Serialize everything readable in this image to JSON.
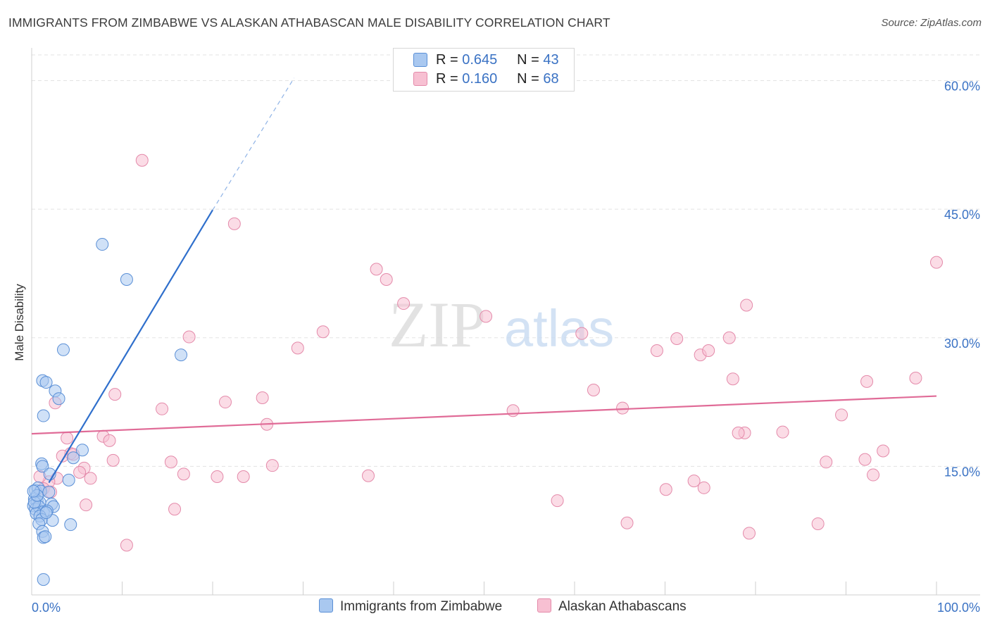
{
  "title": "IMMIGRANTS FROM ZIMBABWE VS ALASKAN ATHABASCAN MALE DISABILITY CORRELATION CHART",
  "source": "Source: ZipAtlas.com",
  "watermark": {
    "zip": "ZIP",
    "atlas": "atlas"
  },
  "legend": {
    "blue": {
      "r_label": "R =",
      "r_value": "0.645",
      "n_label": "N =",
      "n_value": "43"
    },
    "pink": {
      "r_label": "R =",
      "r_value": "0.160",
      "n_label": "N =",
      "n_value": "68"
    }
  },
  "colors": {
    "blue_fill": "#a9c8f0",
    "blue_stroke": "#5a8fd6",
    "blue_line": "#2f6fcc",
    "pink_fill": "#f7c0d2",
    "pink_stroke": "#e48aaa",
    "pink_line": "#e06b97",
    "grid": "#e3e3e3",
    "tick_label": "#3a72c4"
  },
  "chart_data": {
    "type": "scatter",
    "title": "IMMIGRANTS FROM ZIMBABWE VS ALASKAN ATHABASCAN MALE DISABILITY CORRELATION CHART",
    "xlabel": "",
    "ylabel": "Male Disability",
    "xlim": [
      0,
      100
    ],
    "ylim": [
      0,
      63
    ],
    "x_tick_labels": [
      "0.0%",
      "100.0%"
    ],
    "y_ticks": [
      15,
      30,
      45,
      60
    ],
    "y_tick_labels": [
      "15.0%",
      "30.0%",
      "45.0%",
      "60.0%"
    ],
    "series": [
      {
        "name": "Immigrants from Zimbabwe",
        "color": "#a9c8f0",
        "points": [
          [
            1.2,
            25.0
          ],
          [
            1.6,
            24.8
          ],
          [
            2.6,
            23.8
          ],
          [
            3.0,
            22.9
          ],
          [
            1.3,
            20.9
          ],
          [
            3.5,
            28.6
          ],
          [
            7.8,
            40.9
          ],
          [
            10.5,
            36.8
          ],
          [
            16.5,
            28.0
          ],
          [
            5.6,
            16.9
          ],
          [
            4.6,
            16.0
          ],
          [
            1.1,
            15.3
          ],
          [
            1.2,
            15.0
          ],
          [
            2.0,
            14.1
          ],
          [
            4.1,
            13.4
          ],
          [
            0.4,
            12.2
          ],
          [
            0.7,
            12.5
          ],
          [
            1.0,
            12.1
          ],
          [
            1.9,
            12.0
          ],
          [
            0.3,
            11.2
          ],
          [
            0.6,
            11.0
          ],
          [
            0.9,
            10.8
          ],
          [
            0.2,
            10.4
          ],
          [
            0.4,
            10.0
          ],
          [
            0.8,
            10.3
          ],
          [
            1.3,
            9.7
          ],
          [
            2.2,
            10.6
          ],
          [
            2.4,
            10.3
          ],
          [
            1.7,
            9.8
          ],
          [
            0.5,
            9.5
          ],
          [
            0.9,
            9.2
          ],
          [
            1.1,
            8.8
          ],
          [
            2.3,
            8.7
          ],
          [
            0.8,
            8.3
          ],
          [
            4.3,
            8.2
          ],
          [
            1.2,
            7.4
          ],
          [
            1.3,
            6.7
          ],
          [
            1.5,
            6.8
          ],
          [
            1.3,
            1.8
          ],
          [
            0.3,
            10.8
          ],
          [
            0.6,
            11.6
          ],
          [
            1.6,
            9.6
          ],
          [
            0.2,
            12.1
          ]
        ],
        "trend": {
          "x": [
            1.9,
            20.0
          ],
          "y": [
            13.1,
            44.9
          ]
        },
        "trend_dashed": {
          "x": [
            20.0,
            29.0
          ],
          "y": [
            44.9,
            60.3
          ]
        }
      },
      {
        "name": "Alaskan Athabascans",
        "color": "#f7c0d2",
        "points": [
          [
            12.2,
            50.7
          ],
          [
            22.4,
            43.3
          ],
          [
            38.1,
            38.0
          ],
          [
            39.2,
            36.8
          ],
          [
            41.1,
            34.0
          ],
          [
            50.2,
            32.5
          ],
          [
            32.2,
            30.7
          ],
          [
            17.4,
            30.1
          ],
          [
            29.4,
            28.8
          ],
          [
            60.8,
            30.5
          ],
          [
            71.3,
            29.9
          ],
          [
            73.9,
            28.0
          ],
          [
            74.8,
            28.5
          ],
          [
            77.1,
            30.0
          ],
          [
            69.1,
            28.5
          ],
          [
            79.0,
            33.8
          ],
          [
            100.0,
            38.8
          ],
          [
            97.7,
            25.3
          ],
          [
            92.3,
            24.9
          ],
          [
            77.5,
            25.2
          ],
          [
            62.1,
            23.9
          ],
          [
            9.2,
            23.4
          ],
          [
            2.6,
            22.4
          ],
          [
            21.4,
            22.5
          ],
          [
            25.5,
            23.0
          ],
          [
            14.4,
            21.7
          ],
          [
            65.3,
            21.8
          ],
          [
            53.2,
            21.5
          ],
          [
            26.0,
            19.9
          ],
          [
            89.5,
            21.0
          ],
          [
            78.8,
            18.9
          ],
          [
            78.1,
            18.9
          ],
          [
            83.0,
            19.0
          ],
          [
            7.9,
            18.5
          ],
          [
            8.6,
            18.0
          ],
          [
            3.9,
            18.3
          ],
          [
            4.3,
            16.5
          ],
          [
            3.4,
            16.2
          ],
          [
            9.0,
            15.7
          ],
          [
            15.4,
            15.5
          ],
          [
            26.6,
            15.1
          ],
          [
            5.8,
            14.8
          ],
          [
            5.3,
            14.3
          ],
          [
            16.8,
            14.1
          ],
          [
            20.5,
            13.8
          ],
          [
            23.4,
            13.8
          ],
          [
            37.2,
            13.9
          ],
          [
            6.5,
            13.6
          ],
          [
            2.8,
            13.6
          ],
          [
            1.9,
            13.2
          ],
          [
            0.9,
            13.8
          ],
          [
            92.1,
            15.8
          ],
          [
            94.1,
            16.8
          ],
          [
            87.8,
            15.5
          ],
          [
            93.0,
            14.0
          ],
          [
            73.2,
            13.3
          ],
          [
            74.3,
            12.5
          ],
          [
            70.1,
            12.3
          ],
          [
            58.1,
            11.0
          ],
          [
            6.0,
            10.5
          ],
          [
            15.8,
            10.0
          ],
          [
            65.8,
            8.4
          ],
          [
            79.3,
            7.2
          ],
          [
            86.9,
            8.3
          ],
          [
            10.5,
            5.8
          ],
          [
            1.3,
            12.4
          ],
          [
            2.1,
            12.0
          ],
          [
            4.6,
            16.4
          ]
        ],
        "trend": {
          "x": [
            0.0,
            100.0
          ],
          "y": [
            18.8,
            23.2
          ]
        }
      }
    ]
  }
}
